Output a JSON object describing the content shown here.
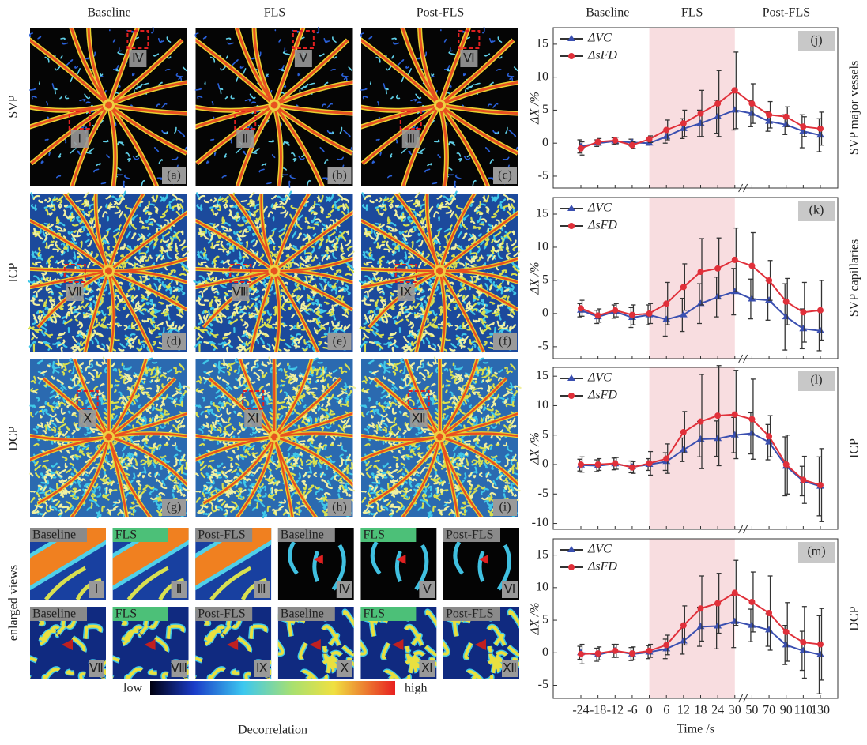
{
  "columns": [
    "Baseline",
    "FLS",
    "Post-FLS"
  ],
  "rows": [
    "SVP",
    "ICP",
    "DCP",
    "enlarged views"
  ],
  "panels": [
    "(a)",
    "(b)",
    "(c)",
    "(d)",
    "(e)",
    "(f)",
    "(g)",
    "(h)",
    "(i)"
  ],
  "regions": [
    "Ⅰ",
    "Ⅱ",
    "Ⅲ",
    "Ⅳ",
    "Ⅴ",
    "Ⅵ",
    "Ⅶ",
    "Ⅷ",
    "Ⅸ",
    "Ⅹ",
    "Ⅺ",
    "Ⅻ"
  ],
  "enlarged_labels": [
    "Baseline",
    "FLS",
    "Post-FLS",
    "Baseline",
    "FLS",
    "Post-FLS",
    "Baseline",
    "FLS",
    "Post-FLS",
    "Baseline",
    "FLS",
    "Post-FLS"
  ],
  "colorbar": {
    "low": "low",
    "high": "high",
    "title": "Decorrelation"
  },
  "phases": [
    "Baseline",
    "FLS",
    "Post-FLS"
  ],
  "x_axis": {
    "label": "Time /s",
    "categories": [
      -24,
      -18,
      -12,
      -6,
      0,
      6,
      12,
      18,
      24,
      30,
      50,
      70,
      90,
      110,
      130
    ],
    "highlight": [
      0,
      30
    ],
    "break_after": 30
  },
  "chart_data": [
    {
      "type": "line",
      "panel": "(j)",
      "side_label": "SVP major vessels",
      "ylabel": "ΔX /%",
      "ylim": [
        -6.8,
        17.5
      ],
      "yticks": [
        -5,
        0,
        5,
        10,
        15
      ],
      "series": [
        {
          "name": "ΔVC",
          "color": "#3a4fb0",
          "marker": "triangle",
          "values": [
            -0.5,
            0,
            0.3,
            0.1,
            0,
            1,
            2.2,
            3,
            4,
            5,
            4.5,
            3.3,
            2.8,
            1.8,
            1.2
          ],
          "errors": [
            1,
            0.5,
            0.5,
            0.5,
            0.3,
            1,
            1.5,
            2,
            2.5,
            3,
            2,
            1.5,
            1.5,
            2.5,
            2.5
          ]
        },
        {
          "name": "ΔsFD",
          "color": "#e0303a",
          "marker": "circle",
          "values": [
            -0.8,
            0.2,
            0.4,
            -0.3,
            0.6,
            2,
            3,
            4.5,
            6,
            8,
            6,
            4.3,
            4,
            2.5,
            2.2
          ],
          "errors": [
            1,
            0.5,
            0.5,
            0.5,
            0.5,
            1.5,
            2,
            3.5,
            5,
            5.8,
            3,
            2,
            1.5,
            1.5,
            2.5
          ]
        }
      ]
    },
    {
      "type": "line",
      "panel": "(k)",
      "side_label": "SVP capillaries",
      "ylabel": "ΔX /%",
      "ylim": [
        -6.8,
        17.5
      ],
      "yticks": [
        -5,
        0,
        5,
        10,
        15
      ],
      "series": [
        {
          "name": "ΔVC",
          "color": "#3a4fb0",
          "marker": "triangle",
          "values": [
            0.5,
            -0.5,
            0.3,
            -0.6,
            -0.2,
            -0.9,
            -0.2,
            1.5,
            2.5,
            3.3,
            2.2,
            2,
            -0.5,
            -2.3,
            -2.6
          ],
          "errors": [
            1,
            1,
            1,
            1.5,
            1.5,
            2.5,
            2.5,
            3,
            3,
            3.5,
            3,
            3,
            5,
            3,
            3
          ]
        },
        {
          "name": "ΔsFD",
          "color": "#e0303a",
          "marker": "circle",
          "values": [
            0.8,
            -0.3,
            0.5,
            -0.2,
            0,
            1.5,
            4,
            6.3,
            6.8,
            8.1,
            7.2,
            5,
            1.8,
            0.2,
            0.5
          ],
          "errors": [
            1.2,
            1,
            1,
            1.5,
            1.5,
            3.2,
            3.5,
            5,
            4.6,
            4.8,
            5,
            3,
            3.5,
            4.5,
            4.5
          ]
        }
      ]
    },
    {
      "type": "line",
      "panel": "(l)",
      "side_label": "ICP",
      "ylabel": "ΔX /%",
      "ylim": [
        -11,
        16.5
      ],
      "yticks": [
        -10,
        -5,
        0,
        5,
        10,
        15
      ],
      "series": [
        {
          "name": "ΔVC",
          "color": "#3a4fb0",
          "marker": "triangle",
          "values": [
            -0.1,
            -0.2,
            0.1,
            -0.4,
            0,
            0.5,
            2.5,
            4.3,
            4.4,
            5,
            5.3,
            3.8,
            -0.3,
            -2.8,
            -3.7
          ],
          "errors": [
            1,
            1,
            1,
            1,
            1,
            1.5,
            2,
            3,
            3,
            3,
            3.5,
            3,
            5,
            2.5,
            5
          ]
        },
        {
          "name": "ΔsFD",
          "color": "#e0303a",
          "marker": "circle",
          "values": [
            0,
            0,
            0.2,
            -0.5,
            0.2,
            1,
            5.5,
            7.3,
            8.3,
            8.5,
            7.7,
            4.8,
            0,
            -2.6,
            -3.5
          ],
          "errors": [
            1.3,
            1,
            1,
            1,
            2,
            2.5,
            3.5,
            8,
            8.5,
            7.5,
            6.8,
            3.5,
            5,
            4,
            6.2
          ]
        }
      ]
    },
    {
      "type": "line",
      "panel": "(m)",
      "side_label": "DCP",
      "ylabel": "ΔX /%",
      "ylim": [
        -7,
        17.5
      ],
      "yticks": [
        -5,
        0,
        5,
        10,
        15
      ],
      "series": [
        {
          "name": "ΔVC",
          "color": "#3a4fb0",
          "marker": "triangle",
          "values": [
            0,
            -0.3,
            0.3,
            -0.2,
            0.1,
            0.6,
            1.8,
            4,
            4.1,
            4.8,
            4.2,
            3.5,
            1.2,
            0.3,
            -0.3
          ],
          "errors": [
            1,
            1,
            1,
            1,
            1,
            1.5,
            2,
            3,
            3.5,
            4,
            2.5,
            2.5,
            3,
            3,
            6
          ]
        },
        {
          "name": "ΔsFD",
          "color": "#e0303a",
          "marker": "circle",
          "values": [
            -0.2,
            -0.1,
            0.3,
            -0.1,
            0.3,
            1.2,
            4.2,
            6.8,
            7.6,
            9.2,
            7.8,
            6.1,
            3.2,
            1.6,
            1.3
          ],
          "errors": [
            1.5,
            1,
            1,
            1,
            1,
            1.5,
            3,
            5,
            4.6,
            5,
            4.6,
            5.7,
            4.5,
            5.5,
            5.5
          ]
        }
      ]
    }
  ]
}
